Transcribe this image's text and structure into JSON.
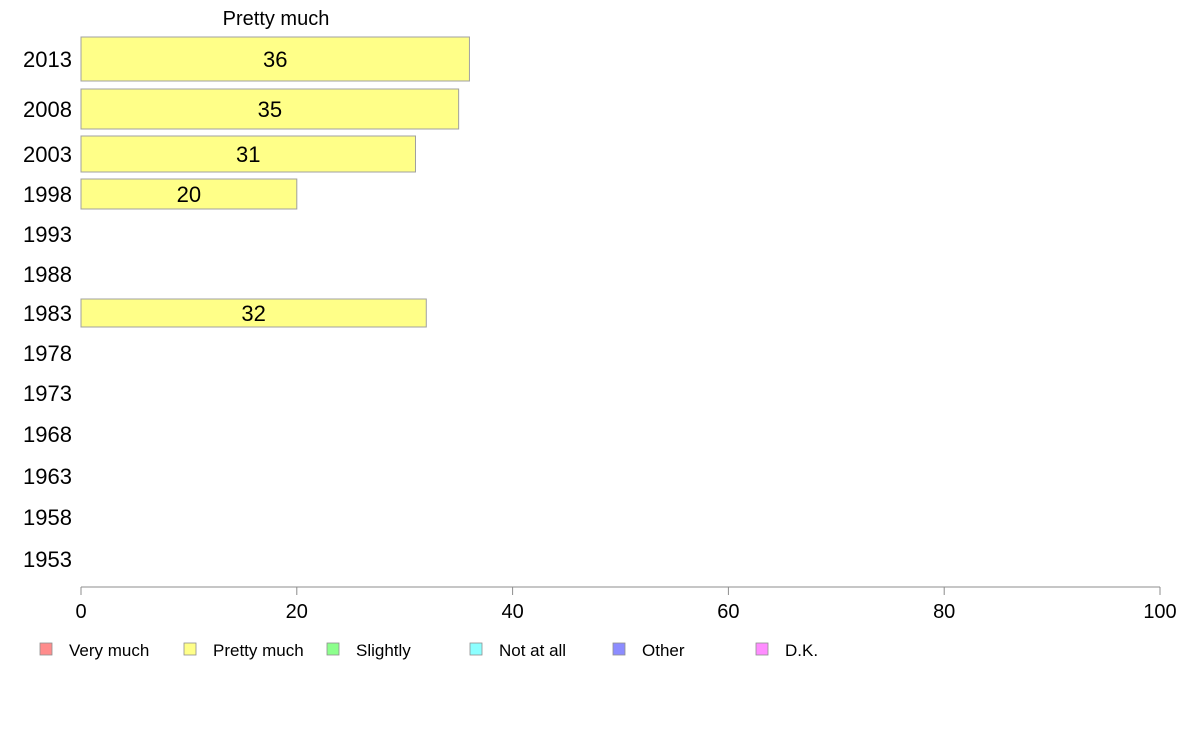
{
  "chart_data": {
    "type": "bar",
    "orientation": "horizontal",
    "title": "Pretty much",
    "categories": [
      "2013",
      "2008",
      "2003",
      "1998",
      "1993",
      "1988",
      "1983",
      "1978",
      "1973",
      "1968",
      "1963",
      "1958",
      "1953"
    ],
    "series": [
      {
        "name": "Pretty much",
        "color": "#ffff88",
        "values": [
          36,
          35,
          31,
          20,
          null,
          null,
          32,
          null,
          null,
          null,
          null,
          null,
          null
        ]
      }
    ],
    "xlim": [
      0,
      100
    ],
    "xticks": [
      0,
      20,
      40,
      60,
      80,
      100
    ],
    "grid": false,
    "legend_position": "bottom",
    "legend": [
      {
        "label": "Very much",
        "color": "#ff8c8c"
      },
      {
        "label": "Pretty much",
        "color": "#ffff88"
      },
      {
        "label": "Slightly",
        "color": "#8cff8c"
      },
      {
        "label": "Not at all",
        "color": "#8cffff"
      },
      {
        "label": "Other",
        "color": "#8c8cff"
      },
      {
        "label": "D.K.",
        "color": "#ff8cff"
      }
    ]
  }
}
